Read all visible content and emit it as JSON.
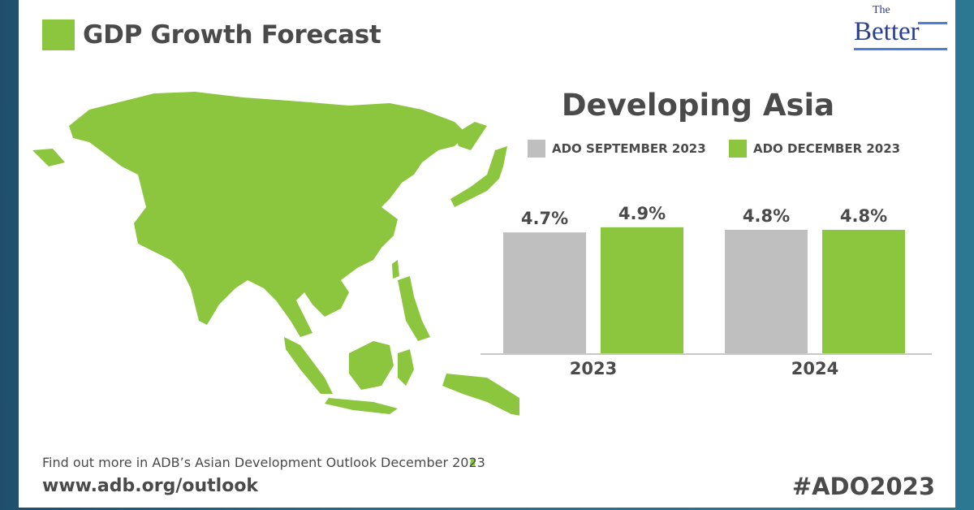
{
  "header": {
    "title": "GDP Growth Forecast",
    "logo_small": "The",
    "logo_main": "Better"
  },
  "colors": {
    "green": "#8cc63f",
    "grey": "#bfbfbf",
    "text": "#4a4a4a",
    "background": "#2a6a88"
  },
  "map": {
    "icon": "asia-map-silhouette"
  },
  "chart_data": {
    "type": "bar",
    "title": "Developing Asia",
    "categories": [
      "2023",
      "2024"
    ],
    "series": [
      {
        "name": "ADO SEPTEMBER 2023",
        "color": "#bfbfbf",
        "values": [
          4.7,
          4.8
        ],
        "labels": [
          "4.7%",
          "4.8%"
        ]
      },
      {
        "name": "ADO DECEMBER 2023",
        "color": "#8cc63f",
        "values": [
          4.9,
          4.8
        ],
        "labels": [
          "4.9%",
          "4.8%"
        ]
      }
    ],
    "ylim": [
      0,
      6
    ],
    "grid": false,
    "legend": "top"
  },
  "footer": {
    "note": "Find out more in ADB’s Asian Development Outlook December 2023",
    "link": "www.adb.org/outlook",
    "hashtag": "#ADO2023"
  }
}
